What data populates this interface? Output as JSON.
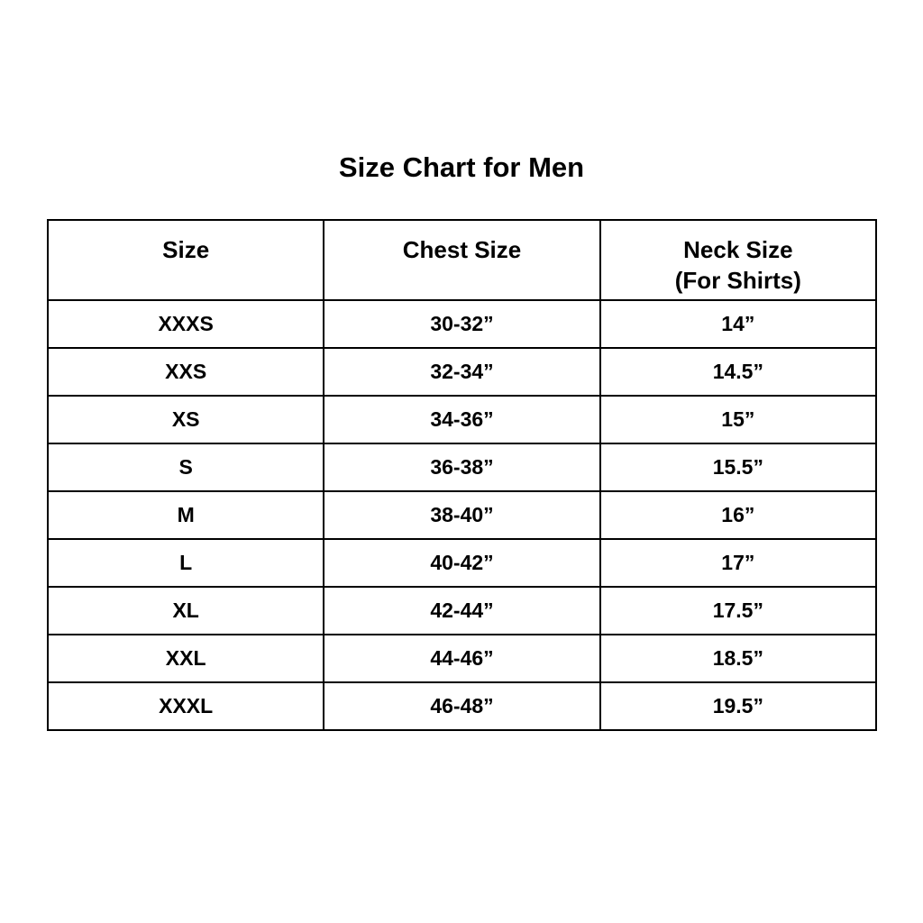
{
  "title": "Size Chart for Men",
  "table": {
    "headers": [
      "Size",
      "Chest Size",
      "Neck Size"
    ],
    "header_sub": "(For Shirts)",
    "rows": [
      [
        "XXXS",
        "30-32”",
        "14”"
      ],
      [
        "XXS",
        "32-34”",
        "14.5”"
      ],
      [
        "XS",
        "34-36”",
        "15”"
      ],
      [
        "S",
        "36-38”",
        "15.5”"
      ],
      [
        "M",
        "38-40”",
        "16”"
      ],
      [
        "L",
        "40-42”",
        "17”"
      ],
      [
        "XL",
        "42-44”",
        "17.5”"
      ],
      [
        "XXL",
        "44-46”",
        "18.5”"
      ],
      [
        "XXXL",
        "46-48”",
        "19.5”"
      ]
    ]
  }
}
